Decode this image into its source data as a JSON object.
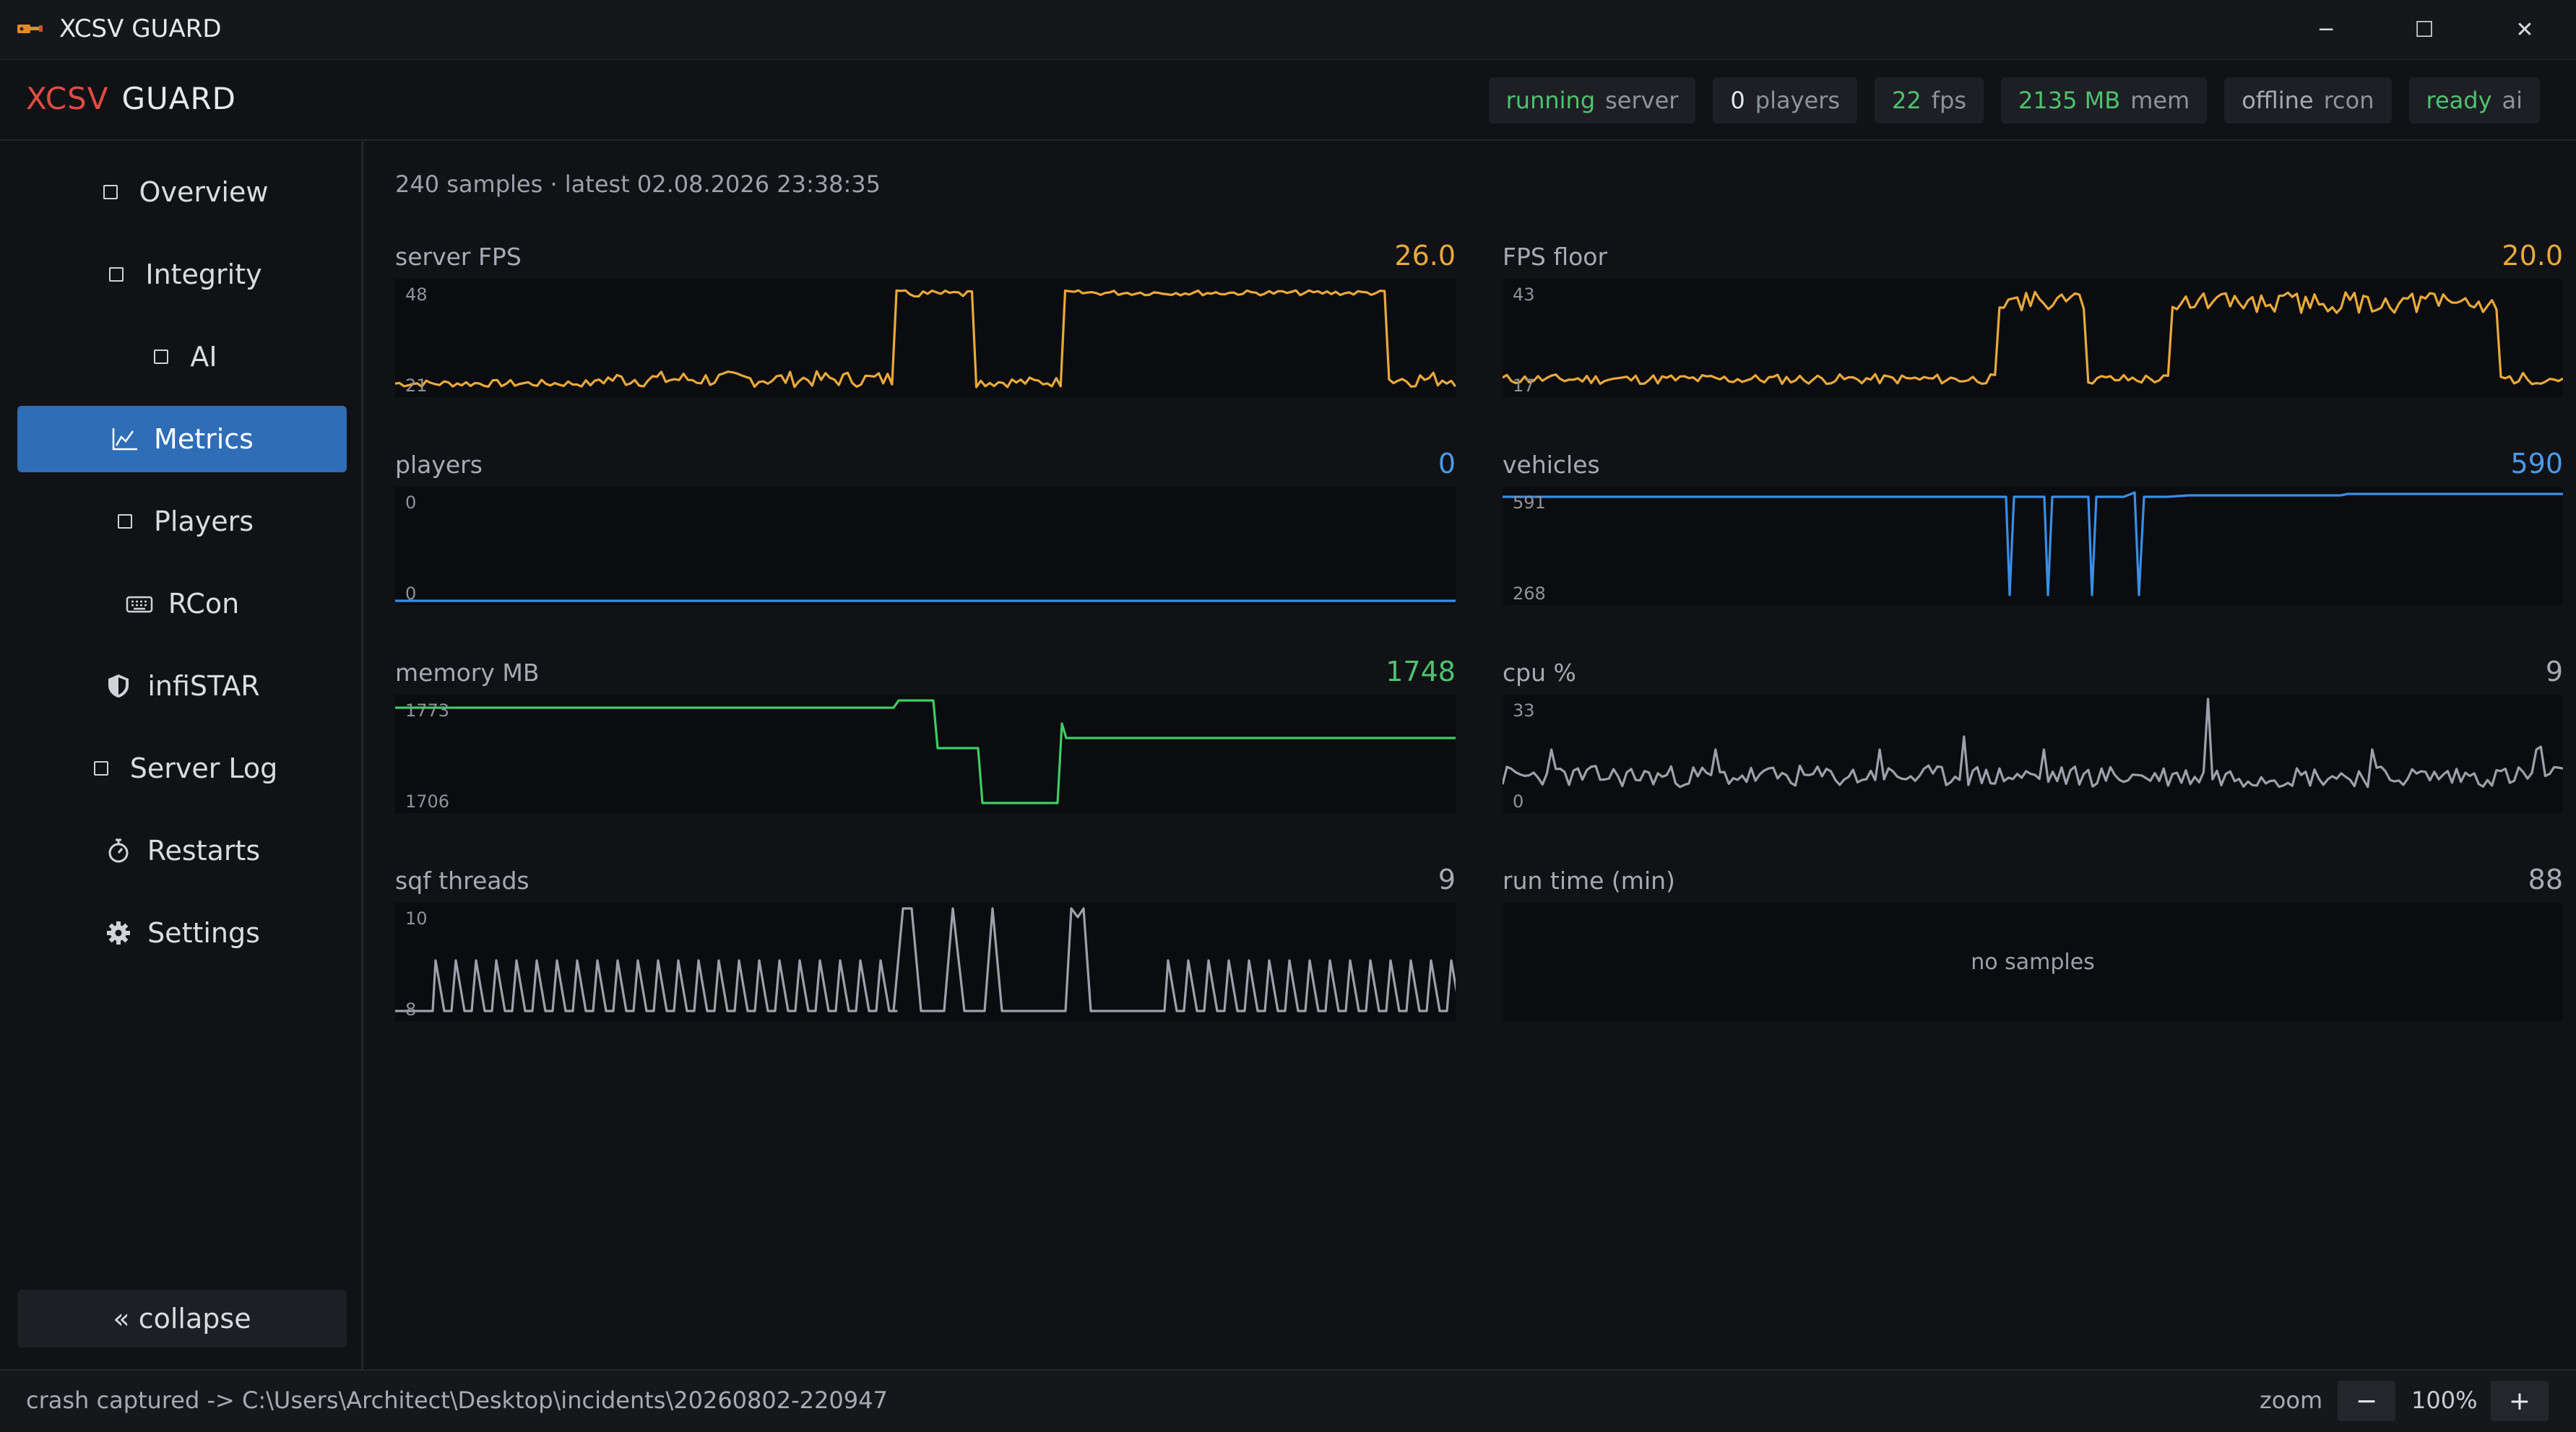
{
  "window": {
    "title": "XCSV GUARD",
    "minimize": "─",
    "maximize": "☐",
    "close": "✕"
  },
  "brand": {
    "part1": "XCSV",
    "part2": "GUARD"
  },
  "status_pills": [
    {
      "value": "running",
      "key": "server",
      "color": "#4ec36e"
    },
    {
      "value": "0",
      "key": "players",
      "color": "#e6e8ec"
    },
    {
      "value": "22",
      "key": "fps",
      "color": "#4ec36e"
    },
    {
      "value": "2135 MB",
      "key": "mem",
      "color": "#4ec36e"
    },
    {
      "value": "offline",
      "key": "rcon",
      "color": "#a7abb3"
    },
    {
      "value": "ready",
      "key": "ai",
      "color": "#4ec36e"
    }
  ],
  "nav": [
    {
      "label": "Overview",
      "icon": "square-icon"
    },
    {
      "label": "Integrity",
      "icon": "square-icon"
    },
    {
      "label": "AI",
      "icon": "square-icon"
    },
    {
      "label": "Metrics",
      "icon": "chart-icon",
      "active": true
    },
    {
      "label": "Players",
      "icon": "square-icon"
    },
    {
      "label": "RCon",
      "icon": "keyboard-icon"
    },
    {
      "label": "infiSTAR",
      "icon": "shield-icon"
    },
    {
      "label": "Server Log",
      "icon": "square-icon"
    },
    {
      "label": "Restarts",
      "icon": "stopwatch-icon"
    },
    {
      "label": "Settings",
      "icon": "gear-icon"
    }
  ],
  "collapse_label": "« collapse",
  "samples_info": "240 samples · latest 02.08.2026 23:38:35",
  "metrics": [
    {
      "label": "server FPS",
      "value": "26.0",
      "value_color": "#e9a93c",
      "line_color": "#e9a93c",
      "ymax": "48",
      "ymin": "21"
    },
    {
      "label": "FPS floor",
      "value": "20.0",
      "value_color": "#e9a93c",
      "line_color": "#e9a93c",
      "ymax": "43",
      "ymin": "17"
    },
    {
      "label": "players",
      "value": "0",
      "value_color": "#4a9be8",
      "line_color": "#3a8ee6",
      "ymax": "0",
      "ymin": "0"
    },
    {
      "label": "vehicles",
      "value": "590",
      "value_color": "#4a9be8",
      "line_color": "#3a8ee6",
      "ymax": "591",
      "ymin": "268"
    },
    {
      "label": "memory MB",
      "value": "1748",
      "value_color": "#4ec36e",
      "line_color": "#3fcc63",
      "ymax": "1773",
      "ymin": "1706"
    },
    {
      "label": "cpu %",
      "value": "9",
      "value_color": "#a7abb3",
      "line_color": "#9da1a9",
      "ymax": "33",
      "ymin": "0"
    },
    {
      "label": "sqf threads",
      "value": "9",
      "value_color": "#a7abb3",
      "line_color": "#9da1a9",
      "ymax": "10",
      "ymin": "8"
    },
    {
      "label": "run time (min)",
      "value": "88",
      "value_color": "#a7abb3",
      "no_samples": "no samples"
    }
  ],
  "statusbar": {
    "message": "crash captured -> C:\\Users\\Architect\\Desktop\\incidents\\20260802-220947",
    "zoom_label": "zoom",
    "zoom_minus": "−",
    "zoom_value": "100%",
    "zoom_plus": "+"
  }
}
